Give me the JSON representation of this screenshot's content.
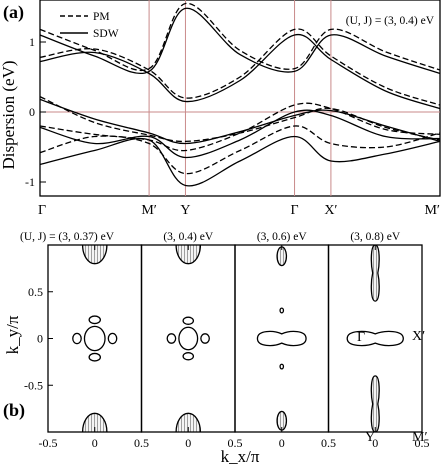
{
  "chart_data": [
    {
      "type": "line",
      "panel_label": "(a)",
      "ylabel": "Dispersion (eV)",
      "param_label": "(U, J) = (3, 0.4) eV",
      "ylim": [
        -1.2,
        1.6
      ],
      "yticks": [
        "-1",
        "0",
        "1"
      ],
      "ytick_values": [
        -1,
        0,
        1
      ],
      "path_labels": [
        "Γ",
        "M′",
        "Y",
        "Γ",
        "X′",
        "M′"
      ],
      "path_positions": [
        0,
        0.75,
        1.0,
        1.75,
        2.0,
        2.75
      ],
      "fermi_level": 0,
      "guide_color": "#c98a8a",
      "legend": {
        "placement": "top-left",
        "entries": [
          {
            "name": "PM",
            "style": "dashed"
          },
          {
            "name": "SDW",
            "style": "solid"
          }
        ]
      },
      "series": [
        {
          "name": "PM",
          "style": "dashed",
          "bands": [
            {
              "x": [
                0,
                0.375,
                0.75,
                1.0,
                1.375,
                1.75,
                2.0,
                2.375,
                2.75
              ],
              "y": [
                1.18,
                0.88,
                0.62,
                1.55,
                0.88,
                0.62,
                1.18,
                0.86,
                0.6
              ]
            },
            {
              "x": [
                0,
                0.375,
                0.75,
                1.0,
                1.375,
                1.75,
                2.0,
                2.375,
                2.75
              ],
              "y": [
                0.78,
                0.9,
                0.6,
                0.2,
                0.5,
                1.18,
                0.8,
                0.35,
                0.1
              ]
            },
            {
              "x": [
                0,
                0.375,
                0.75,
                1.0,
                1.375,
                1.75,
                2.0,
                2.375,
                2.75
              ],
              "y": [
                0.22,
                -0.15,
                -0.33,
                -0.42,
                -0.3,
                -0.08,
                0.05,
                -0.22,
                -0.4
              ]
            },
            {
              "x": [
                0,
                0.375,
                0.75,
                1.0,
                1.375,
                1.75,
                2.0,
                2.375,
                2.75
              ],
              "y": [
                -0.2,
                -0.32,
                -0.4,
                -0.55,
                -0.3,
                0.1,
                0.05,
                -0.25,
                -0.32
              ]
            },
            {
              "x": [
                0,
                0.375,
                0.75,
                1.0,
                1.375,
                1.75,
                2.0,
                2.375,
                2.75
              ],
              "y": [
                -0.58,
                -0.35,
                -0.45,
                -0.88,
                -0.55,
                -0.2,
                -0.45,
                -0.5,
                -0.3
              ]
            }
          ]
        },
        {
          "name": "SDW",
          "style": "solid",
          "bands": [
            {
              "x": [
                0,
                0.375,
                0.75,
                1.0,
                1.375,
                1.75,
                2.0,
                2.375,
                2.75
              ],
              "y": [
                1.1,
                0.8,
                0.58,
                1.48,
                0.82,
                0.58,
                1.1,
                0.8,
                0.55
              ]
            },
            {
              "x": [
                0,
                0.375,
                0.75,
                1.0,
                1.375,
                1.75,
                2.0,
                2.375,
                2.75
              ],
              "y": [
                0.72,
                0.85,
                0.55,
                0.15,
                0.45,
                1.1,
                0.75,
                0.3,
                0.05
              ]
            },
            {
              "x": [
                0,
                0.375,
                0.75,
                1.0,
                1.375,
                1.75,
                2.0,
                2.375,
                2.75
              ],
              "y": [
                0.18,
                -0.1,
                -0.3,
                -0.45,
                -0.28,
                -0.05,
                0.02,
                -0.2,
                -0.42
              ]
            },
            {
              "x": [
                0,
                0.375,
                0.75,
                1.0,
                1.375,
                1.75,
                2.0,
                2.375,
                2.75
              ],
              "y": [
                -0.22,
                -0.45,
                -0.35,
                -0.65,
                -0.4,
                0.0,
                -0.05,
                -0.35,
                -0.38
              ]
            },
            {
              "x": [
                0,
                0.375,
                0.75,
                1.0,
                1.375,
                1.75,
                2.0,
                2.375,
                2.75
              ],
              "y": [
                -0.75,
                -0.55,
                -0.4,
                -1.05,
                -0.7,
                -0.35,
                -0.7,
                -0.6,
                -0.42
              ]
            }
          ]
        }
      ]
    },
    {
      "type": "contour",
      "panel_label": "(b)",
      "xlabel": "k_x/π",
      "ylabel": "k_y/π",
      "xlim": [
        -0.5,
        0.5
      ],
      "ylim": [
        -1,
        1
      ],
      "yticks": [
        "-1",
        "-0.5",
        "0",
        "0.5",
        "1"
      ],
      "ytick_values": [
        -1,
        -0.5,
        0,
        0.5,
        1
      ],
      "xticks": [
        "-0.5",
        "0",
        "0.5",
        "0",
        "0.5",
        "0",
        "0.5",
        "0",
        "0.5"
      ],
      "right_label_mid": "X′",
      "right_label_bottom": "M′",
      "bottom_label": "Y",
      "gamma_label": "Γ",
      "panels": [
        {
          "param": "(U, J) = (3, 0.37) eV",
          "pockets": [
            {
              "kind": "ellipse",
              "cx": 0,
              "cy": 0,
              "rx": 0.11,
              "ry": 0.13,
              "filled": false
            },
            {
              "kind": "lens",
              "cx": -0.19,
              "cy": 0,
              "rx": 0.045,
              "ry": 0.055,
              "filled": false
            },
            {
              "kind": "lens",
              "cx": 0.19,
              "cy": 0,
              "rx": 0.045,
              "ry": 0.055,
              "filled": false
            },
            {
              "kind": "lens",
              "cx": 0,
              "cy": 0.2,
              "rx": 0.06,
              "ry": 0.04,
              "filled": false
            },
            {
              "kind": "lens",
              "cx": 0,
              "cy": -0.2,
              "rx": 0.06,
              "ry": 0.04,
              "filled": false
            },
            {
              "kind": "ellipse",
              "cx": 0,
              "cy": 1,
              "rx": 0.13,
              "ry": 0.2,
              "filled": true
            },
            {
              "kind": "ellipse",
              "cx": 0,
              "cy": -1,
              "rx": 0.13,
              "ry": 0.2,
              "filled": true
            }
          ]
        },
        {
          "param": "(3, 0.4) eV",
          "pockets": [
            {
              "kind": "ellipse",
              "cx": 0,
              "cy": 0,
              "rx": 0.1,
              "ry": 0.12,
              "filled": false
            },
            {
              "kind": "lens",
              "cx": -0.18,
              "cy": 0,
              "rx": 0.045,
              "ry": 0.05,
              "filled": false
            },
            {
              "kind": "lens",
              "cx": 0.18,
              "cy": 0,
              "rx": 0.045,
              "ry": 0.05,
              "filled": false
            },
            {
              "kind": "lens",
              "cx": 0,
              "cy": 0.19,
              "rx": 0.055,
              "ry": 0.038,
              "filled": false
            },
            {
              "kind": "lens",
              "cx": 0,
              "cy": -0.19,
              "rx": 0.055,
              "ry": 0.038,
              "filled": false
            },
            {
              "kind": "ellipse",
              "cx": 0,
              "cy": 1,
              "rx": 0.13,
              "ry": 0.2,
              "filled": true
            },
            {
              "kind": "ellipse",
              "cx": 0,
              "cy": -1,
              "rx": 0.13,
              "ry": 0.2,
              "filled": true
            }
          ]
        },
        {
          "param": "(3, 0.6) eV",
          "pockets": [
            {
              "kind": "peanut-h",
              "cx": 0,
              "cy": 0,
              "rx": 0.26,
              "ry": 0.09,
              "filled": false
            },
            {
              "kind": "ellipse",
              "cx": 0,
              "cy": 0.3,
              "rx": 0.018,
              "ry": 0.025,
              "filled": false
            },
            {
              "kind": "ellipse",
              "cx": 0,
              "cy": -0.3,
              "rx": 0.018,
              "ry": 0.025,
              "filled": false
            },
            {
              "kind": "ellipse",
              "cx": 0,
              "cy": 0.88,
              "rx": 0.05,
              "ry": 0.1,
              "filled": true
            },
            {
              "kind": "ellipse",
              "cx": 0,
              "cy": -0.88,
              "rx": 0.05,
              "ry": 0.1,
              "filled": true
            }
          ]
        },
        {
          "param": "(3, 0.8) eV",
          "pockets": [
            {
              "kind": "peanut-h",
              "cx": 0,
              "cy": 0,
              "rx": 0.3,
              "ry": 0.09,
              "filled": false
            },
            {
              "kind": "peanut-v",
              "cx": 0,
              "cy": 0.7,
              "rx": 0.05,
              "ry": 0.3,
              "filled": true
            },
            {
              "kind": "peanut-v",
              "cx": 0,
              "cy": -0.7,
              "rx": 0.05,
              "ry": 0.3,
              "filled": true
            }
          ]
        }
      ]
    }
  ]
}
